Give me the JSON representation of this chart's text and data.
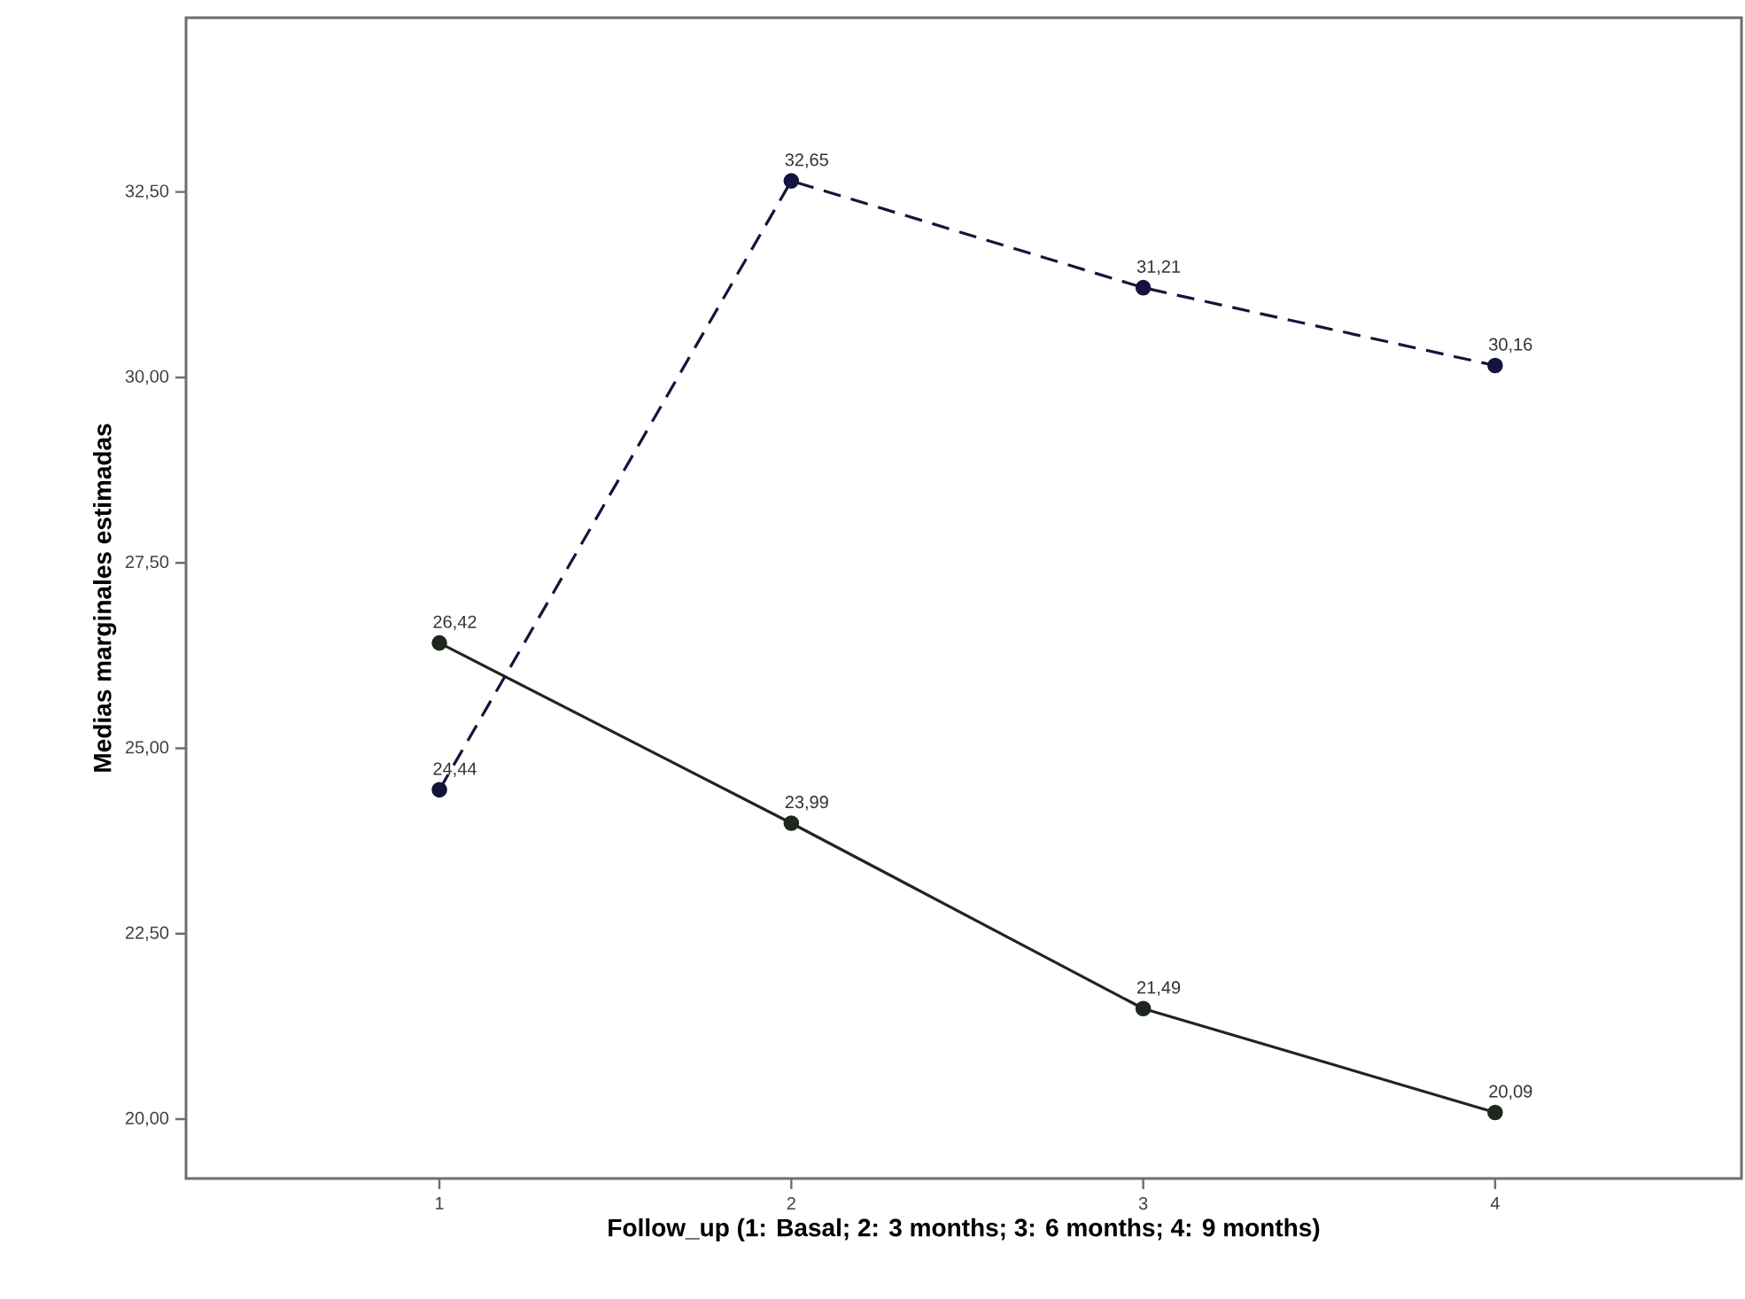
{
  "chart_data": {
    "type": "line",
    "xlabel": "Follow_up (1: Basal; 2: 3 months; 3: 6 months; 4: 9 months)",
    "ylabel": "Medias marginales estimadas",
    "x": [
      1,
      2,
      3,
      4
    ],
    "xlim": [
      0.28,
      4.7
    ],
    "xticks": [
      1,
      2,
      3,
      4
    ],
    "ylim": [
      19.2,
      34.85
    ],
    "yticks": [
      {
        "value": 20,
        "label": "20,00"
      },
      {
        "value": 22.5,
        "label": "22,50"
      },
      {
        "value": 25,
        "label": "25,00"
      },
      {
        "value": 27.5,
        "label": "27,50"
      },
      {
        "value": 30,
        "label": "30,00"
      },
      {
        "value": 32.5,
        "label": "32,50"
      }
    ],
    "marker": "circle",
    "series": [
      {
        "color": "#1e261e",
        "line_style": "solid",
        "values": [
          26.42,
          23.99,
          21.49,
          20.09
        ],
        "value_labels": [
          "26,42",
          "23,99",
          "21,49",
          "20,09"
        ]
      },
      {
        "color": "#14143c",
        "line_style": "dashed",
        "values": [
          24.44,
          32.65,
          31.21,
          30.16
        ],
        "value_labels": [
          "24,44",
          "32,65",
          "31,21",
          "30,16"
        ]
      }
    ]
  }
}
